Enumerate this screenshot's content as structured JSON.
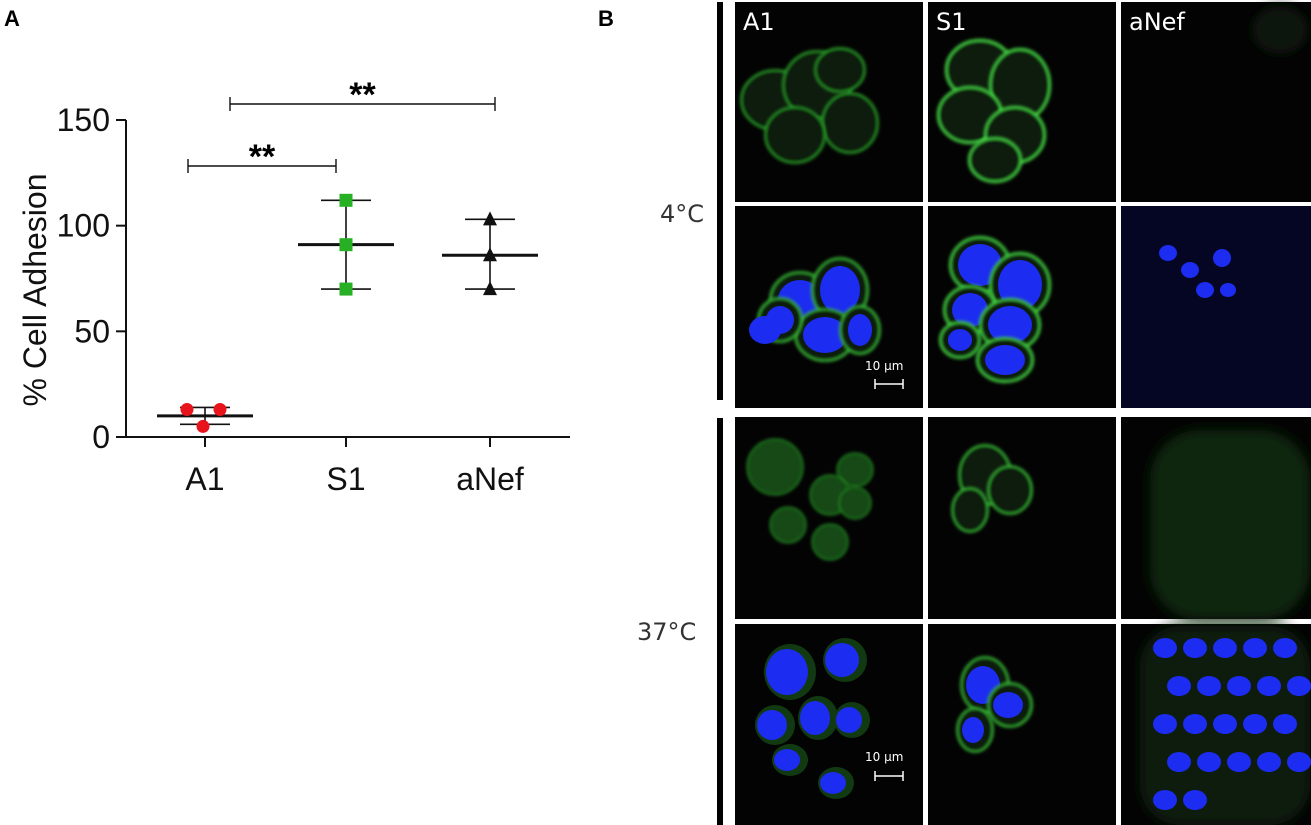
{
  "panels": {
    "a_letter": "A",
    "b_letter": "B"
  },
  "chart_data": {
    "type": "scatter",
    "categories": [
      "A1",
      "S1",
      "aNef"
    ],
    "ylabel": "% Cell Adhesion",
    "xlabel": "",
    "ylim": [
      0,
      150
    ],
    "yticks": [
      0,
      50,
      100,
      150
    ],
    "series": [
      {
        "category": "A1",
        "marker": "circle",
        "color": "#e8141c",
        "points": [
          13,
          13,
          5
        ],
        "mean": 10,
        "error": [
          6,
          14
        ]
      },
      {
        "category": "S1",
        "marker": "square",
        "color": "#27b023",
        "points": [
          112,
          91,
          70
        ],
        "mean": 91,
        "error": [
          70,
          112
        ]
      },
      {
        "category": "aNef",
        "marker": "triangle",
        "color": "#111111",
        "points": [
          103,
          86,
          70
        ],
        "mean": 86,
        "error": [
          70,
          103
        ]
      }
    ],
    "annotations": [
      {
        "from": "A1",
        "to": "S1",
        "y": 128,
        "text": "**"
      },
      {
        "from": "A1",
        "to": "aNef",
        "y": 155,
        "text": "**"
      }
    ]
  },
  "micrographs": {
    "columns": [
      "A1",
      "S1",
      "aNef"
    ],
    "temperatures": [
      "4°C",
      "37°C"
    ],
    "scale_bar": "10 µm"
  }
}
